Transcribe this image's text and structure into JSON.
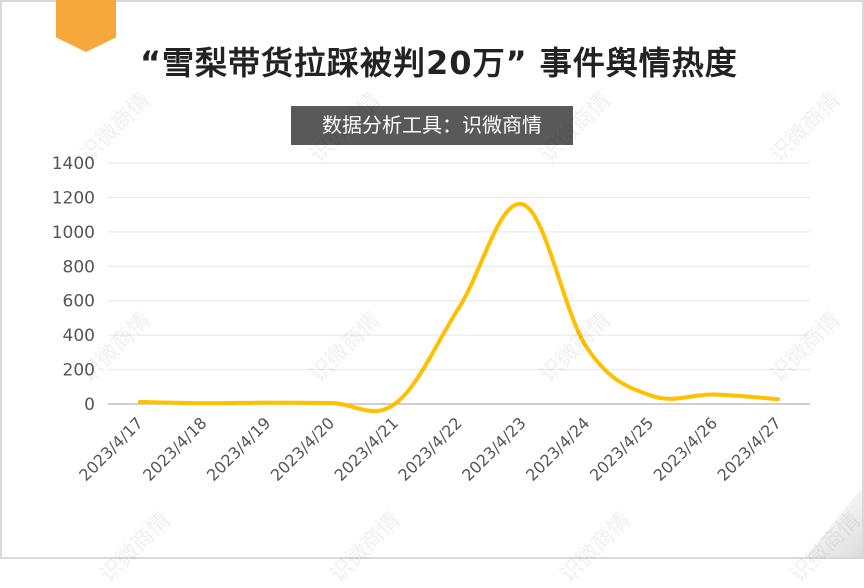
{
  "title": "“雪梨带货拉踩被判20万” 事件舆情热度",
  "subtitle": "数据分析工具：识微商情",
  "watermark": "识微商情",
  "colors": {
    "line": "#ffc000",
    "accent": "#f7a83d",
    "grid": "#e6e6e6",
    "axis": "#bfbfbf"
  },
  "chart_data": {
    "type": "line",
    "categories": [
      "2023/4/17",
      "2023/4/18",
      "2023/4/19",
      "2023/4/20",
      "2023/4/21",
      "2023/4/22",
      "2023/4/23",
      "2023/4/24",
      "2023/4/25",
      "2023/4/26",
      "2023/4/27"
    ],
    "series": [
      {
        "values": [
          12,
          5,
          8,
          6,
          2,
          560,
          1160,
          330,
          50,
          55,
          28
        ]
      }
    ],
    "ylim": [
      0,
      1400
    ],
    "yticks": [
      "0",
      "200",
      "400",
      "600",
      "800",
      "1000",
      "1200",
      "1400"
    ],
    "grid": true,
    "legend": "none",
    "title": "“雪梨带货拉踩被判20万” 事件舆情热度"
  }
}
